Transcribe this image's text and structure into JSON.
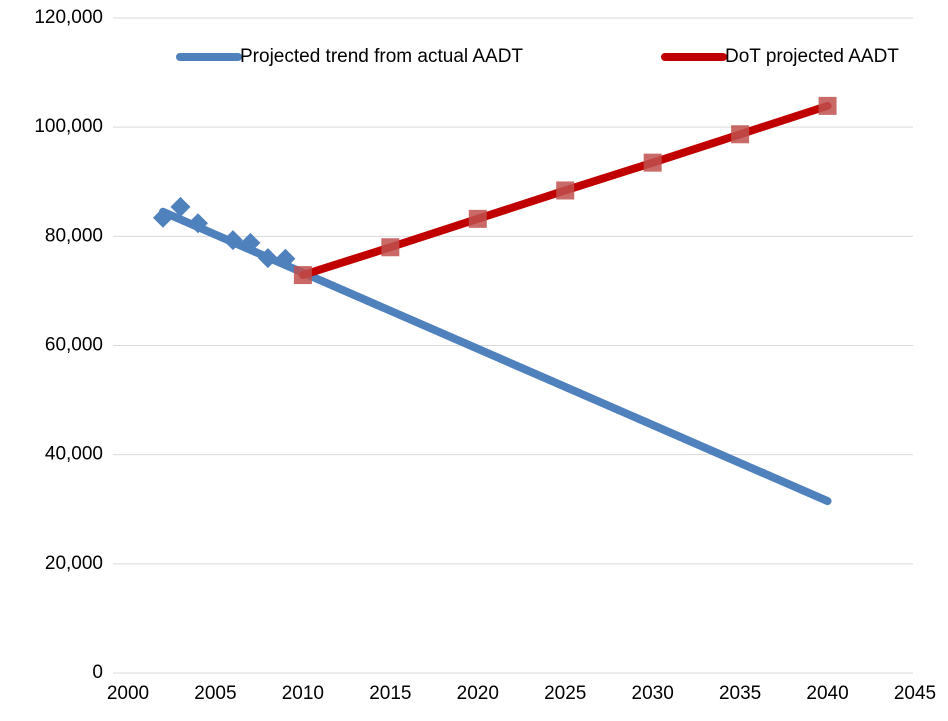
{
  "chart_data": {
    "type": "line",
    "series": [
      {
        "name": "Projected trend from actual AADT",
        "color": "#4f81bd",
        "line": true,
        "marker": "none",
        "x": [
          2002,
          2040
        ],
        "values": [
          84500,
          31500
        ]
      },
      {
        "color": "#4f81bd",
        "line": false,
        "marker": "diamond",
        "x": [
          2002,
          2003,
          2004,
          2006,
          2007,
          2008,
          2009
        ],
        "values": [
          83400,
          85400,
          82400,
          79300,
          78800,
          76000,
          75900
        ]
      },
      {
        "name": "DoT projected AADT",
        "color": "#c00000",
        "marker_color": "#c0504d",
        "line": true,
        "marker": "square",
        "x": [
          2010,
          2015,
          2020,
          2025,
          2030,
          2035,
          2040
        ],
        "values": [
          72900,
          78000,
          83200,
          88400,
          93500,
          98700,
          103900
        ]
      }
    ],
    "xlim": [
      2000,
      2045
    ],
    "xticks": [
      2000,
      2005,
      2010,
      2015,
      2020,
      2025,
      2030,
      2035,
      2040,
      2045
    ],
    "ylim": [
      0,
      120000
    ],
    "yticks": [
      0,
      {
        "value": 20000,
        "label": "20,000"
      },
      {
        "value": 40000,
        "label": "40,000"
      },
      {
        "value": 60000,
        "label": "60,000"
      },
      {
        "value": 80000,
        "label": "80,000"
      },
      {
        "value": 100000,
        "label": "100,000"
      },
      {
        "value": 120000,
        "label": "120,000"
      }
    ],
    "grid": true,
    "legend": "top"
  }
}
